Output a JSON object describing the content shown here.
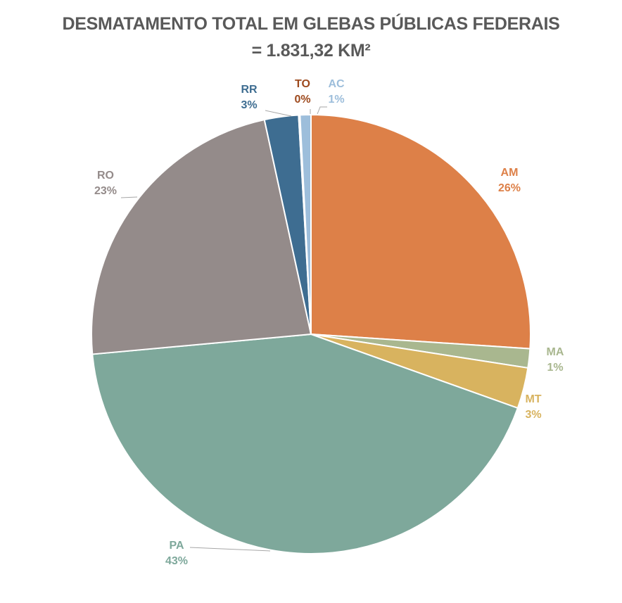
{
  "chart_data": {
    "type": "pie",
    "title": "DESMATAMENTO TOTAL EM GLEBAS PÚBLICAS FEDERAIS",
    "subtitle": "= 1.831,32 KM²",
    "slices": [
      {
        "label": "AM",
        "value": 26,
        "display": "26%",
        "color": "#DD8048"
      },
      {
        "label": "MA",
        "value": 1.4,
        "display": "1%",
        "color": "#A9B78F"
      },
      {
        "label": "MT",
        "value": 3,
        "display": "3%",
        "color": "#D8B35F"
      },
      {
        "label": "PA",
        "value": 43,
        "display": "43%",
        "color": "#7EA89B"
      },
      {
        "label": "RO",
        "value": 23,
        "display": "23%",
        "color": "#948B8A"
      },
      {
        "label": "RR",
        "value": 2.5,
        "display": "3%",
        "color": "#3E6D91"
      },
      {
        "label": "TO",
        "value": 0.1,
        "display": "0%",
        "color": "#9E4A1E"
      },
      {
        "label": "AC",
        "value": 0.8,
        "display": "1%",
        "color": "#9DBEDB"
      }
    ]
  }
}
